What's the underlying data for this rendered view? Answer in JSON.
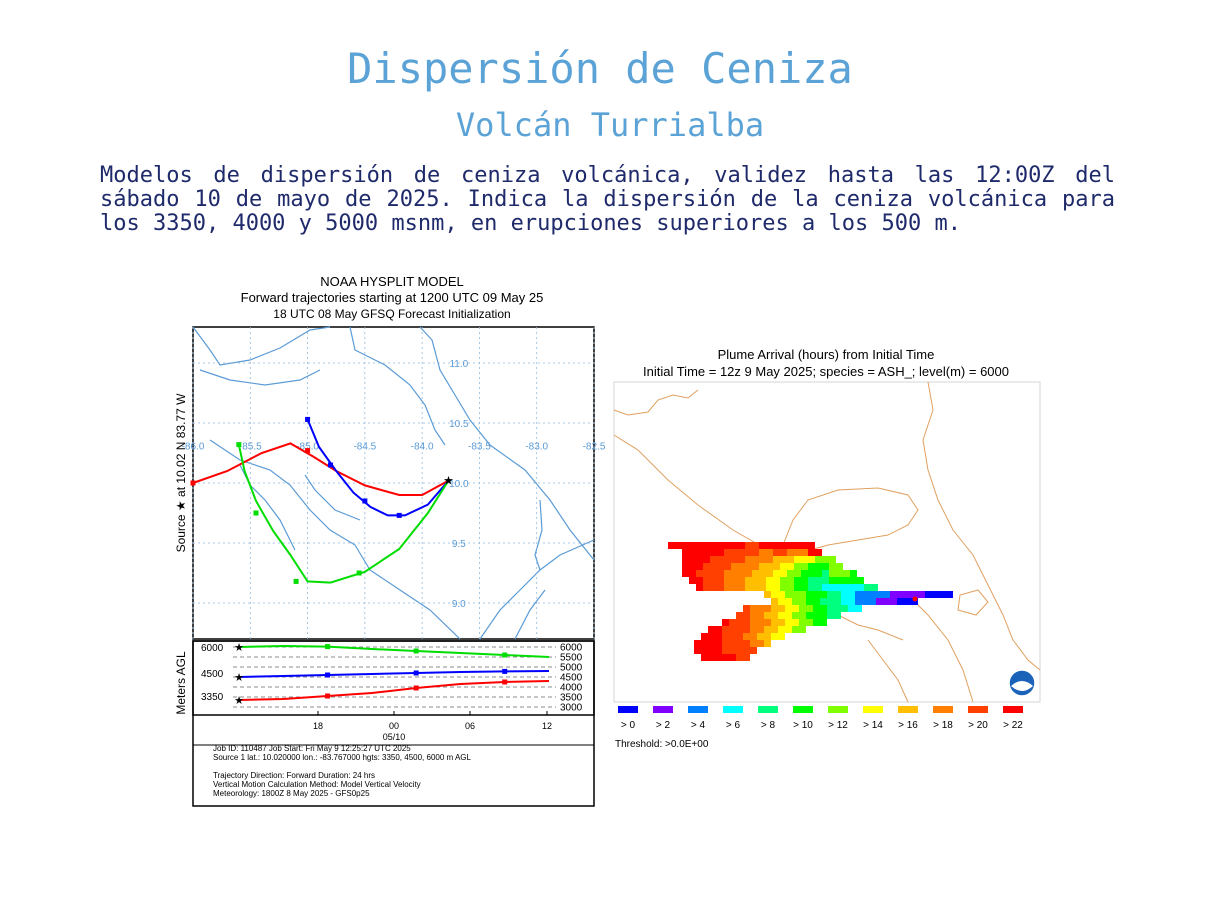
{
  "header": {
    "title": "Dispersión de Ceniza",
    "subtitle": "Volcán Turrialba",
    "description": "Modelos de dispersión de ceniza volcánica, validez hasta las 12:00Z del sábado 10 de mayo de 2025. Indica la dispersión de la ceniza volcánica para los 3350, 4000 y 5000 msnm, en erupciones superiores a los 500 m."
  },
  "chart_data": [
    {
      "type": "line",
      "title": "NOAA HYSPLIT MODEL",
      "subtitle_lines": [
        "Forward trajectories starting at 1200 UTC 09 May 25",
        "18 UTC 08 May    GFSQ  Forecast Initialization"
      ],
      "map": {
        "ylabel": "Source ★ at   10.02 N   83.77 W",
        "lon_ticks": [
          "-86.0",
          "-85.5",
          "-85.0",
          "-84.5",
          "-84.0",
          "-83.5",
          "-83.0",
          "-82.5"
        ],
        "lat_ticks": [
          "11.0",
          "10.5",
          "10.0",
          "9.5",
          "9.0"
        ],
        "xlim": [
          -86.0,
          -82.5
        ],
        "ylim": [
          8.7,
          11.3
        ],
        "source": {
          "lon": -83.77,
          "lat": 10.02
        },
        "series": [
          {
            "color": "#ff0000",
            "points": [
              [
                -86.0,
                10.0
              ],
              [
                -85.7,
                10.1
              ],
              [
                -85.4,
                10.25
              ],
              [
                -85.15,
                10.33
              ],
              [
                -84.95,
                10.22
              ],
              [
                -84.75,
                10.1
              ],
              [
                -84.5,
                9.98
              ],
              [
                -84.2,
                9.9
              ],
              [
                -84.0,
                9.9
              ],
              [
                -83.77,
                10.02
              ]
            ],
            "markers": [
              [
                -85.0,
                10.27
              ],
              [
                -86.0,
                10.0
              ]
            ]
          },
          {
            "color": "#0000ff",
            "points": [
              [
                -85.0,
                10.53
              ],
              [
                -84.9,
                10.3
              ],
              [
                -84.75,
                10.1
              ],
              [
                -84.6,
                9.92
              ],
              [
                -84.45,
                9.8
              ],
              [
                -84.3,
                9.73
              ],
              [
                -84.15,
                9.73
              ],
              [
                -83.95,
                9.82
              ],
              [
                -83.77,
                10.02
              ]
            ],
            "markers": [
              [
                -85.0,
                10.53
              ],
              [
                -84.8,
                10.15
              ],
              [
                -84.5,
                9.85
              ],
              [
                -84.2,
                9.73
              ]
            ]
          },
          {
            "color": "#00dd00",
            "points": [
              [
                -85.6,
                10.32
              ],
              [
                -85.55,
                10.1
              ],
              [
                -85.45,
                9.85
              ],
              [
                -85.3,
                9.6
              ],
              [
                -85.15,
                9.4
              ],
              [
                -85.0,
                9.18
              ],
              [
                -84.8,
                9.17
              ],
              [
                -84.5,
                9.26
              ],
              [
                -84.2,
                9.45
              ],
              [
                -83.95,
                9.75
              ],
              [
                -83.77,
                10.02
              ]
            ],
            "markers": [
              [
                -85.6,
                10.32
              ],
              [
                -85.45,
                9.75
              ],
              [
                -85.1,
                9.18
              ],
              [
                -84.55,
                9.25
              ]
            ]
          }
        ]
      },
      "height_panel": {
        "ylabel": "Meters AGL",
        "left_labels": [
          "6000",
          "4500",
          "3350"
        ],
        "right_labels": [
          "6000",
          "5500",
          "5000",
          "4500",
          "4000",
          "3500",
          "3000"
        ],
        "time_ticks": [
          "18",
          "00",
          "06",
          "12"
        ],
        "date_label": "05/10",
        "ylim": [
          3000,
          6000
        ],
        "series": [
          {
            "color": "#00dd00",
            "values": [
              6000,
              6050,
              6020,
              5900,
              5800,
              5700,
              5600,
              5500
            ]
          },
          {
            "color": "#0000ff",
            "values": [
              4500,
              4550,
              4600,
              4650,
              4700,
              4750,
              4780,
              4800
            ]
          },
          {
            "color": "#ff0000",
            "values": [
              3350,
              3400,
              3550,
              3700,
              3950,
              4150,
              4250,
              4300
            ]
          }
        ]
      },
      "info_lines": [
        "Job ID: 110487                    Job Start: Fri May  9 12:25:27 UTC 2025",
        "Source 1 lat.: 10.020000  lon.: -83.767000  hgts: 3350, 4500, 6000 m AGL",
        "",
        "Trajectory Direction: Forward      Duration: 24 hrs",
        "Vertical Motion Calculation Method:      Model Vertical Velocity",
        "Meteorology: 1800Z 8 May 2025 - GFS0p25"
      ]
    },
    {
      "type": "heatmap",
      "title": "Plume Arrival (hours) from Initial Time",
      "subtitle": "Initial Time = 12z  9 May 2025;  species = ASH_;  level(m) =  6000",
      "legend": [
        {
          "label": "> 0",
          "color": "#0000ff"
        },
        {
          "label": "> 2",
          "color": "#7f00ff"
        },
        {
          "label": "> 4",
          "color": "#007fff"
        },
        {
          "label": "> 6",
          "color": "#00ffff"
        },
        {
          "label": "> 8",
          "color": "#00ff7f"
        },
        {
          "label": "> 10",
          "color": "#00ff00"
        },
        {
          "label": "> 12",
          "color": "#7fff00"
        },
        {
          "label": "> 14",
          "color": "#ffff00"
        },
        {
          "label": "> 16",
          "color": "#ffbf00"
        },
        {
          "label": "> 18",
          "color": "#ff8000"
        },
        {
          "label": "> 20",
          "color": "#ff4000"
        },
        {
          "label": "> 22",
          "color": "#ff0000"
        }
      ],
      "threshold": "Threshold: >0.0E+00",
      "cells": [
        {
          "col": "-85.6",
          "row": "10.45",
          "h": 22
        },
        {
          "col": "-85.55",
          "row": "10.45",
          "h": 22
        },
        {
          "col": "-85.5",
          "row": "10.45",
          "h": 22
        },
        {
          "col": "-85.45",
          "row": "10.45",
          "h": 21
        },
        {
          "col": "-85.4",
          "row": "10.45",
          "h": 21
        },
        {
          "col": "-85.35",
          "row": "10.45",
          "h": 22
        }
      ]
    }
  ]
}
